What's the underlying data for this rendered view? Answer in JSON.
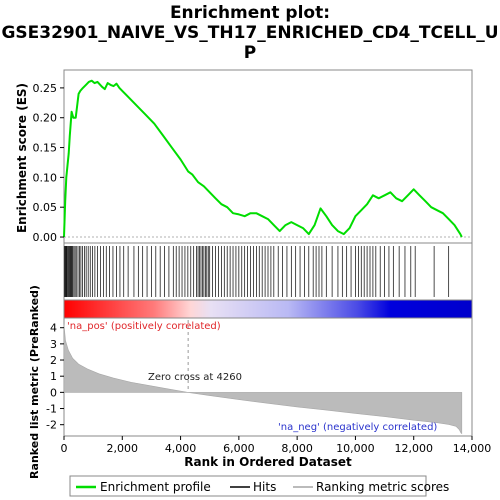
{
  "title_line1": "Enrichment plot:",
  "title_line2": "GSE32901_NAIVE_VS_TH17_ENRICHED_CD4_TCELL_U",
  "title_line3": "P",
  "colors": {
    "es_line": "#00dd00",
    "hits": "#000000",
    "metric_fill": "#bbbbbb",
    "pos_bar": "#ff0000",
    "neg_bar": "#0000dd"
  },
  "chart_data": [
    {
      "type": "line",
      "name": "enrichment-profile",
      "ylabel": "Enrichment score (ES)",
      "ylim": [
        -0.01,
        0.28
      ],
      "xlim": [
        0,
        14000
      ],
      "yticks": [
        0.0,
        0.05,
        0.1,
        0.15,
        0.2,
        0.25
      ],
      "ytick_labels": [
        "0.00",
        "0.05",
        "0.10",
        "0.15",
        "0.20",
        "0.25"
      ],
      "x": [
        0,
        40,
        80,
        120,
        160,
        200,
        260,
        320,
        400,
        500,
        560,
        650,
        750,
        850,
        950,
        1050,
        1150,
        1300,
        1400,
        1500,
        1600,
        1700,
        1800,
        1900,
        2000,
        2200,
        2500,
        2800,
        3100,
        3400,
        3700,
        4000,
        4260,
        4400,
        4600,
        4800,
        5000,
        5200,
        5400,
        5600,
        5800,
        6000,
        6200,
        6400,
        6600,
        6800,
        7000,
        7200,
        7400,
        7600,
        7800,
        8000,
        8200,
        8400,
        8600,
        8800,
        9000,
        9200,
        9400,
        9600,
        9800,
        10000,
        10200,
        10400,
        10600,
        10800,
        11000,
        11200,
        11400,
        11600,
        11800,
        12000,
        12200,
        12400,
        12600,
        12800,
        13000,
        13200,
        13400,
        13600,
        13650
      ],
      "y": [
        0.0,
        0.06,
        0.1,
        0.12,
        0.14,
        0.17,
        0.21,
        0.2,
        0.2,
        0.24,
        0.245,
        0.25,
        0.255,
        0.26,
        0.262,
        0.258,
        0.26,
        0.252,
        0.248,
        0.258,
        0.255,
        0.253,
        0.257,
        0.25,
        0.245,
        0.235,
        0.22,
        0.205,
        0.19,
        0.17,
        0.15,
        0.13,
        0.11,
        0.105,
        0.092,
        0.085,
        0.075,
        0.065,
        0.055,
        0.05,
        0.04,
        0.038,
        0.035,
        0.04,
        0.04,
        0.035,
        0.03,
        0.02,
        0.01,
        0.02,
        0.025,
        0.02,
        0.015,
        0.005,
        0.02,
        0.048,
        0.035,
        0.02,
        0.01,
        0.005,
        0.015,
        0.035,
        0.045,
        0.055,
        0.07,
        0.065,
        0.07,
        0.075,
        0.065,
        0.06,
        0.07,
        0.08,
        0.07,
        0.06,
        0.05,
        0.045,
        0.04,
        0.03,
        0.02,
        0.005,
        0.0
      ]
    },
    {
      "type": "bar",
      "name": "hits",
      "x": [
        20,
        45,
        70,
        95,
        120,
        150,
        180,
        210,
        240,
        270,
        300,
        340,
        380,
        420,
        480,
        530,
        580,
        640,
        700,
        760,
        830,
        900,
        980,
        1060,
        1150,
        1250,
        1350,
        1450,
        1560,
        1680,
        1800,
        1920,
        2050,
        2200,
        2400,
        2550,
        2700,
        2850,
        3000,
        3150,
        3300,
        3450,
        3600,
        3750,
        3850,
        3950,
        4050,
        4150,
        4250,
        4350,
        4450,
        4550,
        4600,
        4650,
        4700,
        4750,
        4800,
        4850,
        4900,
        4950,
        5000,
        5100,
        5200,
        5300,
        5400,
        5500,
        5600,
        5700,
        5800,
        5900,
        6000,
        6100,
        6200,
        6300,
        6400,
        6500,
        6600,
        6700,
        6800,
        6900,
        7000,
        7100,
        7200,
        7350,
        7500,
        7650,
        7800,
        7950,
        8100,
        8250,
        8400,
        8550,
        8650,
        8750,
        8850,
        9000,
        9200,
        9400,
        9550,
        9700,
        9850,
        10000,
        10100,
        10200,
        10300,
        10400,
        10500,
        10600,
        10700,
        10850,
        11000,
        11150,
        11300,
        11500,
        11700,
        11900,
        12050,
        12700,
        13200
      ]
    },
    {
      "type": "area",
      "name": "ranked-list-metric",
      "xlabel": "Rank in Ordered Dataset",
      "ylabel": "Ranked list metric (PreRanked)",
      "ylim": [
        -2.7,
        4.6
      ],
      "xlim": [
        0,
        14000
      ],
      "yticks": [
        -2,
        -1,
        0,
        1,
        2,
        3,
        4
      ],
      "xticks": [
        0,
        2000,
        4000,
        6000,
        8000,
        10000,
        12000,
        14000
      ],
      "xtick_labels": [
        "0",
        "2,000",
        "4,000",
        "6,000",
        "8,000",
        "10,000",
        "12,000",
        "14,000"
      ],
      "x": [
        0,
        50,
        150,
        300,
        500,
        800,
        1200,
        1700,
        2300,
        3000,
        3600,
        4260,
        5000,
        6000,
        7000,
        8000,
        9000,
        10000,
        11000,
        12000,
        12800,
        13200,
        13450,
        13560,
        13620,
        13650
      ],
      "y": [
        4.2,
        3.2,
        2.6,
        2.1,
        1.75,
        1.45,
        1.15,
        0.88,
        0.62,
        0.4,
        0.2,
        0.0,
        -0.2,
        -0.45,
        -0.68,
        -0.9,
        -1.1,
        -1.3,
        -1.5,
        -1.72,
        -1.88,
        -1.98,
        -2.1,
        -2.3,
        -2.5,
        -2.55
      ]
    }
  ],
  "annotations": {
    "pos_label": "'na_pos' (positively correlated)",
    "neg_label": "'na_neg' (negatively correlated)",
    "zero_cross": "Zero cross at 4260",
    "zero_cross_x": 4260
  },
  "legend": {
    "items": [
      {
        "label": "Enrichment profile",
        "color": "#00dd00",
        "style": "line"
      },
      {
        "label": "Hits",
        "color": "#000000",
        "style": "line"
      },
      {
        "label": "Ranking metric scores",
        "color": "#bbbbbb",
        "style": "line"
      }
    ]
  }
}
